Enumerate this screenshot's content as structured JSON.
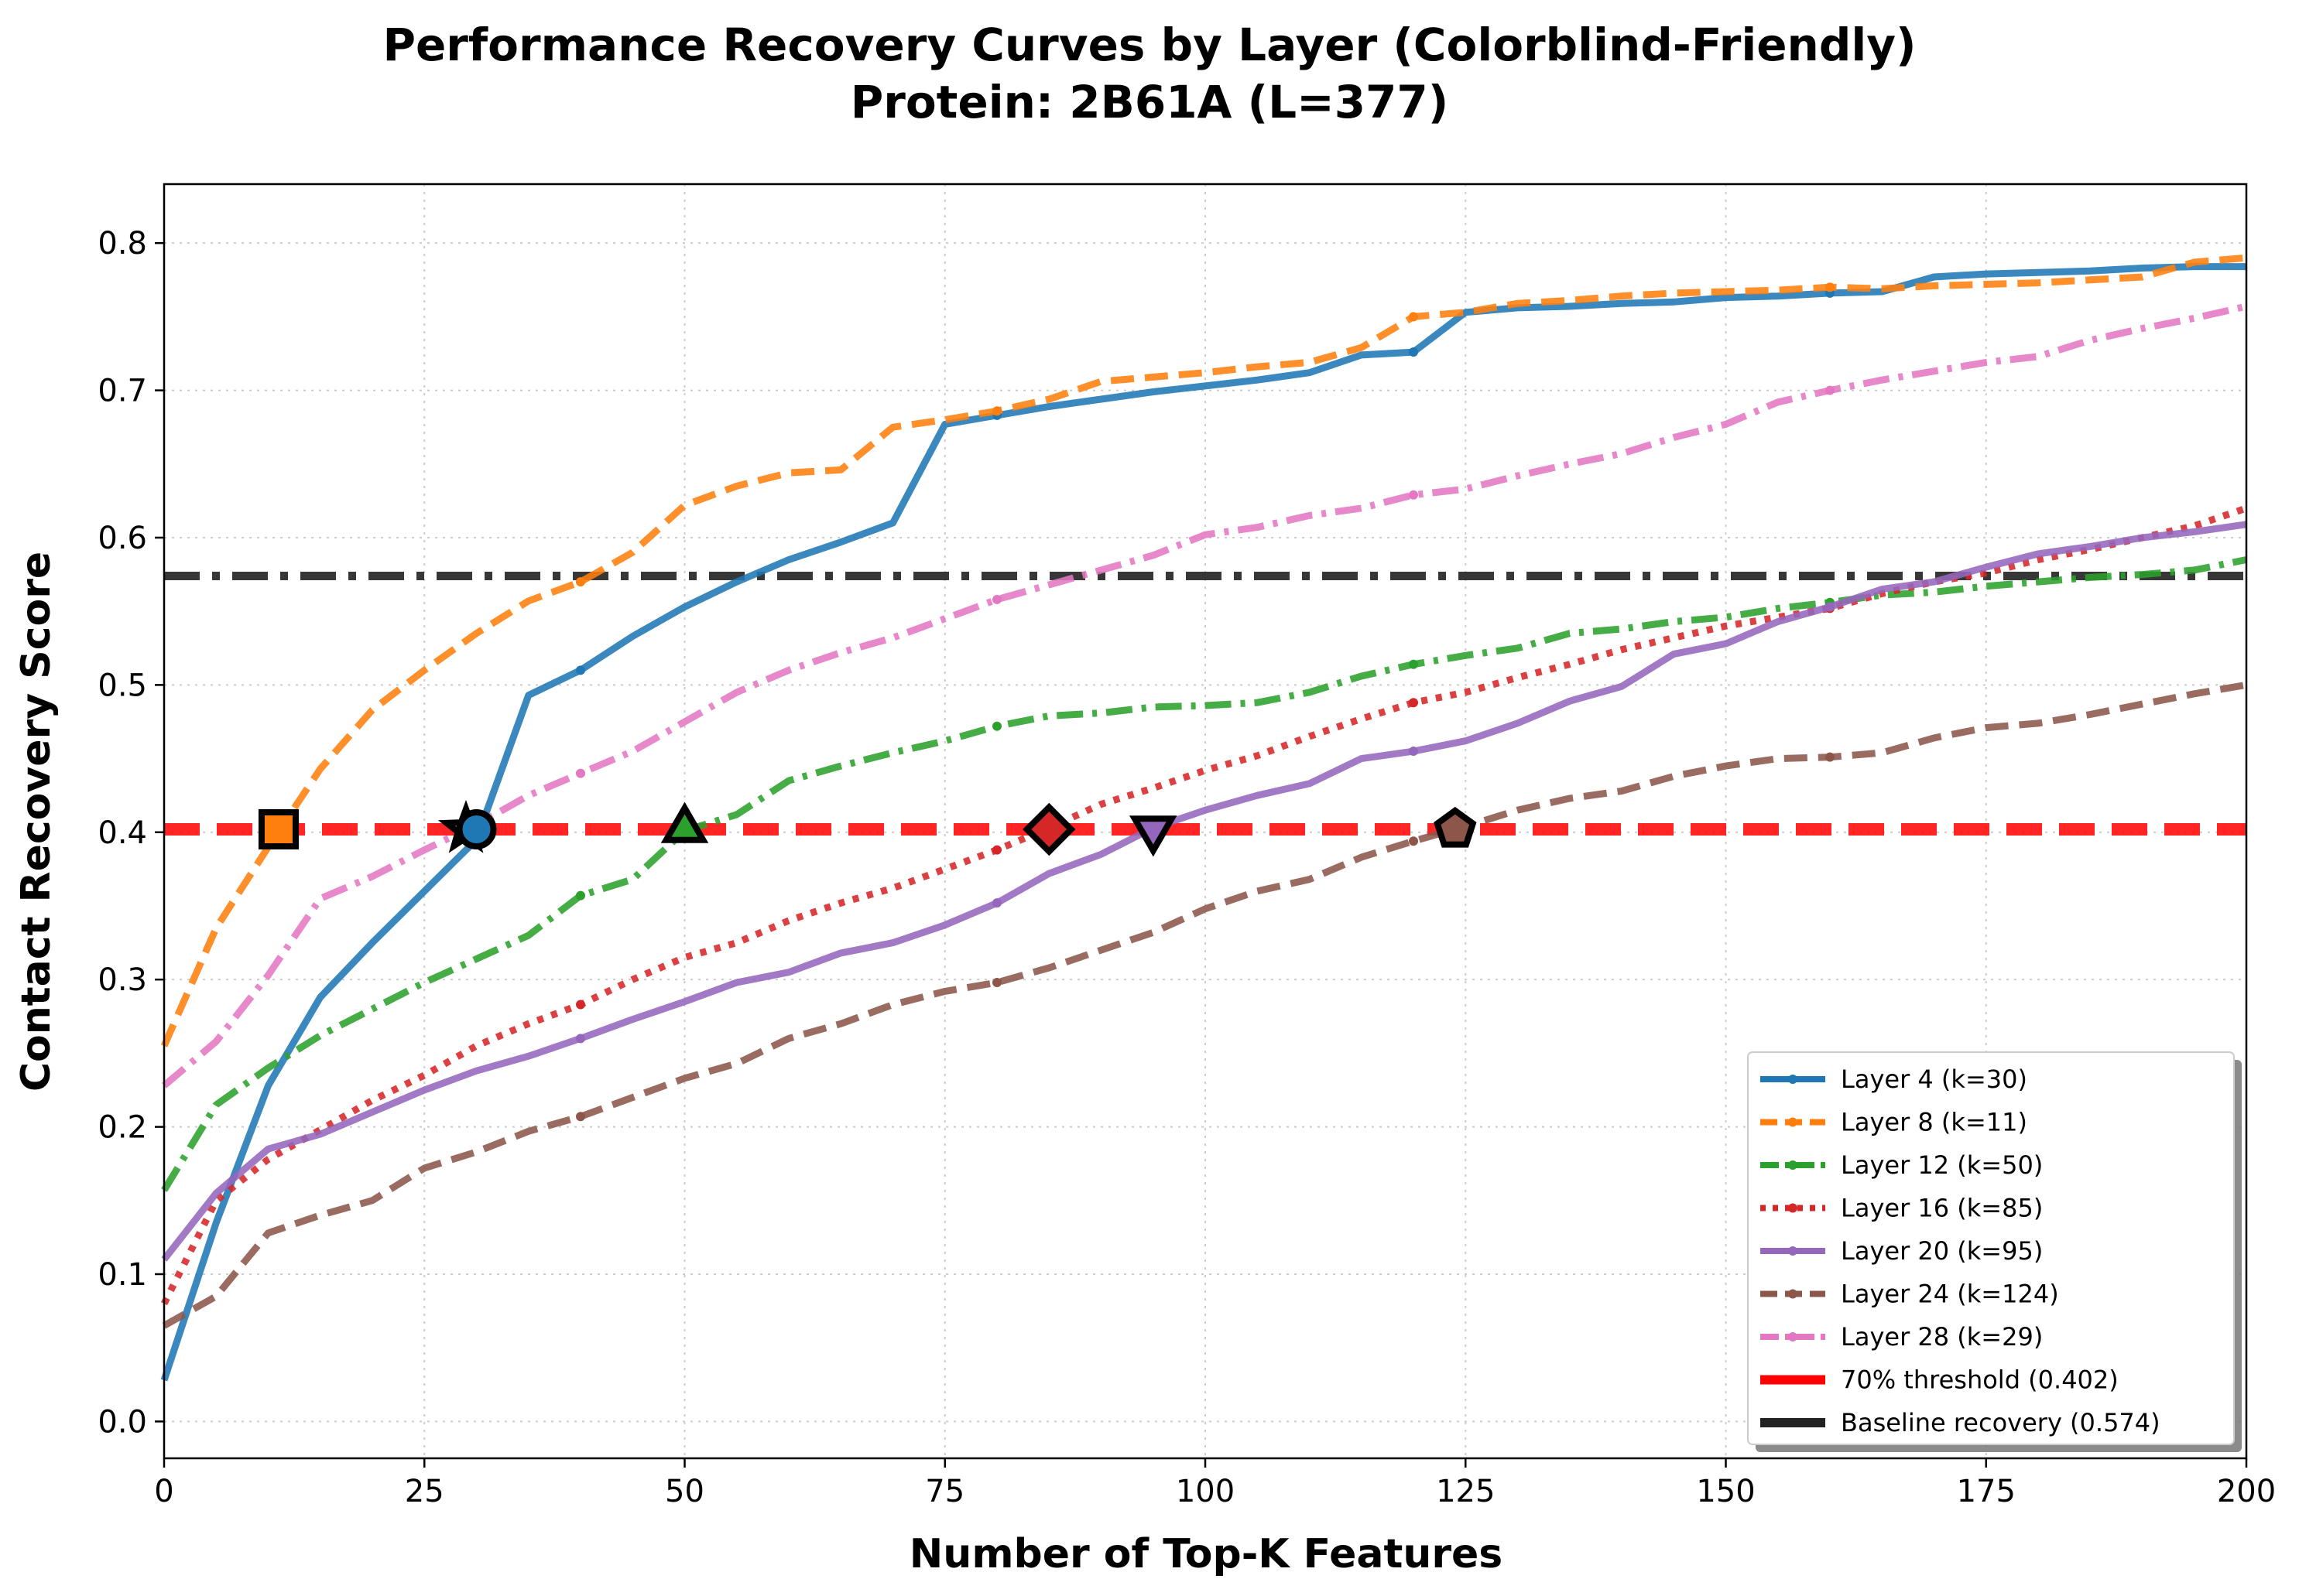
{
  "chart_data": {
    "type": "line",
    "title": "Performance Recovery Curves by Layer (Colorblind-Friendly)",
    "subtitle": "Protein: 2B61A (L=377)",
    "xlabel": "Number of Top-K Features",
    "ylabel": "Contact Recovery Score",
    "xlim": [
      0,
      200
    ],
    "ylim": [
      -0.025,
      0.84
    ],
    "xticks": [
      0,
      25,
      50,
      75,
      100,
      125,
      150,
      175,
      200
    ],
    "xtick_labels": [
      "0",
      "25",
      "50",
      "75",
      "100",
      "125",
      "150",
      "175",
      "200"
    ],
    "yticks": [
      0.0,
      0.1,
      0.2,
      0.3,
      0.4,
      0.5,
      0.6,
      0.7,
      0.8
    ],
    "ytick_labels": [
      "0.0",
      "0.1",
      "0.2",
      "0.3",
      "0.4",
      "0.5",
      "0.6",
      "0.7",
      "0.8"
    ],
    "grid": true,
    "legend_position": "bottom-right",
    "x": [
      0,
      5,
      10,
      15,
      20,
      25,
      30,
      35,
      40,
      45,
      50,
      55,
      60,
      65,
      70,
      75,
      80,
      85,
      90,
      95,
      100,
      105,
      110,
      115,
      120,
      125,
      130,
      135,
      140,
      145,
      150,
      155,
      160,
      165,
      170,
      175,
      180,
      185,
      190,
      195,
      200
    ],
    "series": [
      {
        "name": "Layer 4 (k=30)",
        "color": "#1f77b4",
        "dash": "solid",
        "width": 9,
        "marker": "circle",
        "values": [
          0.028,
          0.135,
          0.228,
          0.288,
          0.325,
          0.36,
          0.395,
          0.493,
          0.51,
          0.533,
          0.553,
          0.57,
          0.585,
          0.597,
          0.61,
          0.677,
          0.683,
          0.689,
          0.694,
          0.699,
          0.703,
          0.707,
          0.712,
          0.724,
          0.726,
          0.753,
          0.756,
          0.757,
          0.759,
          0.76,
          0.763,
          0.764,
          0.766,
          0.767,
          0.777,
          0.779,
          0.78,
          0.781,
          0.783,
          0.784,
          0.784
        ]
      },
      {
        "name": "Layer 8 (k=11)",
        "color": "#ff7f0e",
        "dash": "dashed",
        "width": 9,
        "marker": "square",
        "values": [
          0.255,
          0.335,
          0.39,
          0.443,
          0.483,
          0.51,
          0.535,
          0.557,
          0.57,
          0.59,
          0.622,
          0.635,
          0.644,
          0.646,
          0.675,
          0.68,
          0.686,
          0.694,
          0.706,
          0.709,
          0.712,
          0.716,
          0.719,
          0.729,
          0.75,
          0.753,
          0.759,
          0.761,
          0.764,
          0.766,
          0.767,
          0.768,
          0.77,
          0.769,
          0.771,
          0.772,
          0.773,
          0.775,
          0.777,
          0.787,
          0.79
        ]
      },
      {
        "name": "Layer 12 (k=50)",
        "color": "#2ca02c",
        "dash": "dashdot",
        "width": 9,
        "marker": "triangle-up",
        "values": [
          0.157,
          0.215,
          0.24,
          0.262,
          0.28,
          0.298,
          0.314,
          0.33,
          0.357,
          0.368,
          0.401,
          0.412,
          0.435,
          0.445,
          0.454,
          0.462,
          0.472,
          0.479,
          0.481,
          0.485,
          0.486,
          0.488,
          0.495,
          0.506,
          0.514,
          0.52,
          0.525,
          0.535,
          0.538,
          0.543,
          0.546,
          0.552,
          0.556,
          0.561,
          0.563,
          0.567,
          0.57,
          0.573,
          0.575,
          0.578,
          0.585
        ]
      },
      {
        "name": "Layer 16 (k=85)",
        "color": "#d62728",
        "dash": "dotted",
        "width": 9,
        "marker": "diamond",
        "values": [
          0.08,
          0.15,
          0.178,
          0.198,
          0.218,
          0.235,
          0.255,
          0.27,
          0.283,
          0.3,
          0.315,
          0.325,
          0.34,
          0.352,
          0.362,
          0.375,
          0.388,
          0.403,
          0.419,
          0.43,
          0.442,
          0.452,
          0.465,
          0.477,
          0.488,
          0.495,
          0.505,
          0.514,
          0.524,
          0.532,
          0.54,
          0.546,
          0.552,
          0.562,
          0.57,
          0.576,
          0.585,
          0.592,
          0.6,
          0.608,
          0.62
        ]
      },
      {
        "name": "Layer 20 (k=95)",
        "color": "#9467bd",
        "dash": "solid",
        "width": 9,
        "marker": "triangle-down",
        "values": [
          0.11,
          0.155,
          0.185,
          0.195,
          0.21,
          0.225,
          0.238,
          0.248,
          0.26,
          0.273,
          0.285,
          0.298,
          0.305,
          0.318,
          0.325,
          0.337,
          0.352,
          0.372,
          0.385,
          0.403,
          0.415,
          0.425,
          0.433,
          0.45,
          0.455,
          0.462,
          0.474,
          0.489,
          0.499,
          0.521,
          0.528,
          0.543,
          0.553,
          0.565,
          0.57,
          0.58,
          0.589,
          0.594,
          0.6,
          0.604,
          0.609
        ]
      },
      {
        "name": "Layer 24 (k=124)",
        "color": "#8c564b",
        "dash": "dashed",
        "width": 9,
        "marker": "star",
        "values": [
          0.065,
          0.085,
          0.128,
          0.14,
          0.15,
          0.172,
          0.183,
          0.197,
          0.207,
          0.22,
          0.233,
          0.243,
          0.26,
          0.27,
          0.283,
          0.292,
          0.298,
          0.308,
          0.32,
          0.332,
          0.348,
          0.36,
          0.368,
          0.383,
          0.394,
          0.404,
          0.415,
          0.423,
          0.428,
          0.438,
          0.445,
          0.45,
          0.451,
          0.454,
          0.464,
          0.471,
          0.474,
          0.48,
          0.487,
          0.494,
          0.5
        ]
      },
      {
        "name": "Layer 28 (k=29)",
        "color": "#e377c2",
        "dash": "dashdot",
        "width": 9,
        "marker": "circle",
        "values": [
          0.228,
          0.258,
          0.303,
          0.355,
          0.37,
          0.388,
          0.405,
          0.425,
          0.44,
          0.455,
          0.475,
          0.495,
          0.51,
          0.522,
          0.532,
          0.545,
          0.558,
          0.568,
          0.578,
          0.588,
          0.602,
          0.607,
          0.615,
          0.62,
          0.629,
          0.633,
          0.642,
          0.65,
          0.657,
          0.668,
          0.677,
          0.692,
          0.7,
          0.707,
          0.713,
          0.719,
          0.723,
          0.734,
          0.742,
          0.749,
          0.757
        ]
      }
    ],
    "reference_lines": [
      {
        "name": "70% threshold (0.402)",
        "y": 0.402,
        "color": "#ff0000",
        "dash": "dashed"
      },
      {
        "name": "Baseline recovery (0.574)",
        "y": 0.574,
        "color": "#222222",
        "dash": "dashdot"
      }
    ],
    "threshold_markers": [
      {
        "layer": "Layer 4",
        "x": 30,
        "y": 0.402,
        "shape": "circle",
        "fill": "#1f77b4"
      },
      {
        "layer": "Layer 8",
        "x": 11,
        "y": 0.402,
        "shape": "square",
        "fill": "#ff7f0e"
      },
      {
        "layer": "Layer 12",
        "x": 50,
        "y": 0.402,
        "shape": "triangle-up",
        "fill": "#2ca02c"
      },
      {
        "layer": "Layer 16",
        "x": 85,
        "y": 0.402,
        "shape": "diamond",
        "fill": "#d62728"
      },
      {
        "layer": "Layer 20",
        "x": 95,
        "y": 0.402,
        "shape": "triangle-down",
        "fill": "#9467bd"
      },
      {
        "layer": "Layer 24",
        "x": 124,
        "y": 0.402,
        "shape": "pentagon",
        "fill": "#8c564b"
      },
      {
        "layer": "Layer 28",
        "x": 29,
        "y": 0.402,
        "shape": "star",
        "fill": "#e377c2"
      }
    ]
  }
}
